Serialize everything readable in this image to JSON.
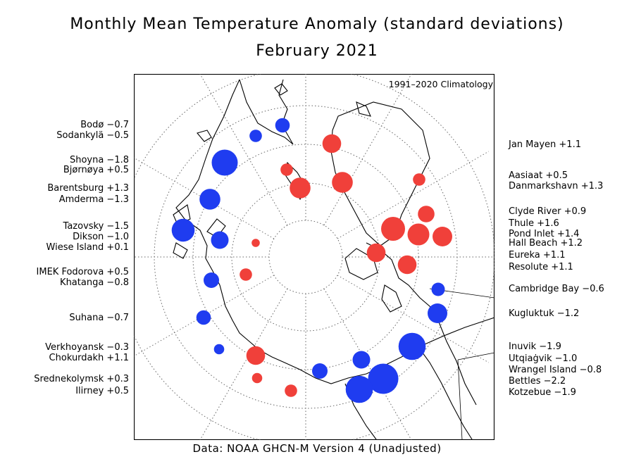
{
  "title": "Monthly Mean Temperature Anomaly (standard deviations)",
  "subtitle": "February 2021",
  "climatology": "1991–2020 Climatology",
  "footer": "Data: NOAA GHCN-M Version 4 (Unadjusted)",
  "colors": {
    "positive": "#f0403a",
    "negative": "#1f3cf0",
    "frame": "#000000"
  },
  "stations_left": [
    {
      "name": "Bodø",
      "value": "−0.7"
    },
    {
      "name": "Sodankylä",
      "value": "−0.5"
    },
    {
      "name": "Shoyna",
      "value": "−1.8"
    },
    {
      "name": "Bjørnøya",
      "value": "+0.5"
    },
    {
      "name": "Barentsburg",
      "value": "+1.3"
    },
    {
      "name": "Amderma",
      "value": "−1.3"
    },
    {
      "name": "Tazovsky",
      "value": "−1.5"
    },
    {
      "name": "Dikson",
      "value": "−1.0"
    },
    {
      "name": "Wiese Island",
      "value": "+0.1"
    },
    {
      "name": "IMEK Fodorova",
      "value": "+0.5"
    },
    {
      "name": "Khatanga",
      "value": "−0.8"
    },
    {
      "name": "Suhana",
      "value": "−0.7"
    },
    {
      "name": "Verkhoyansk",
      "value": "−0.3"
    },
    {
      "name": "Chokurdakh",
      "value": "+1.1"
    },
    {
      "name": "Srednekolymsk",
      "value": "+0.3"
    },
    {
      "name": "Ilirney",
      "value": "+0.5"
    }
  ],
  "stations_right": [
    {
      "name": "Jan Mayen",
      "value": "+1.1"
    },
    {
      "name": "Aasiaat",
      "value": "+0.5"
    },
    {
      "name": "Danmarkshavn",
      "value": "+1.3"
    },
    {
      "name": "Clyde River",
      "value": "+0.9"
    },
    {
      "name": "Thule",
      "value": "+1.6"
    },
    {
      "name": "Pond Inlet",
      "value": "+1.4"
    },
    {
      "name": "Hall Beach",
      "value": "+1.2"
    },
    {
      "name": "Eureka",
      "value": "+1.1"
    },
    {
      "name": "Resolute",
      "value": "+1.1"
    },
    {
      "name": "Cambridge Bay",
      "value": "−0.6"
    },
    {
      "name": "Kugluktuk",
      "value": "−1.2"
    },
    {
      "name": "Inuvik",
      "value": "−1.9"
    },
    {
      "name": "Utqiaġvik",
      "value": "−1.0"
    },
    {
      "name": "Wrangel Island",
      "value": "−0.8"
    },
    {
      "name": "Bettles",
      "value": "−2.2"
    },
    {
      "name": "Kotzebue",
      "value": "−1.9"
    }
  ],
  "markers": [
    {
      "station": "Bodø",
      "anomaly": -0.7
    },
    {
      "station": "Sodankylä",
      "anomaly": -0.5
    },
    {
      "station": "Shoyna",
      "anomaly": -1.8
    },
    {
      "station": "Bjørnøya",
      "anomaly": 0.5
    },
    {
      "station": "Barentsburg",
      "anomaly": 1.3
    },
    {
      "station": "Amderma",
      "anomaly": -1.3
    },
    {
      "station": "Tazovsky",
      "anomaly": -1.5
    },
    {
      "station": "Dikson",
      "anomaly": -1.0
    },
    {
      "station": "Wiese Island",
      "anomaly": 0.1
    },
    {
      "station": "IMEK Fodorova",
      "anomaly": 0.5
    },
    {
      "station": "Khatanga",
      "anomaly": -0.8
    },
    {
      "station": "Suhana",
      "anomaly": -0.7
    },
    {
      "station": "Verkhoyansk",
      "anomaly": -0.3
    },
    {
      "station": "Chokurdakh",
      "anomaly": 1.1
    },
    {
      "station": "Srednekolymsk",
      "anomaly": 0.3
    },
    {
      "station": "Ilirney",
      "anomaly": 0.5
    },
    {
      "station": "Jan Mayen",
      "anomaly": 1.1
    },
    {
      "station": "Aasiaat",
      "anomaly": 0.5
    },
    {
      "station": "Danmarkshavn",
      "anomaly": 1.3
    },
    {
      "station": "Clyde River",
      "anomaly": 0.9
    },
    {
      "station": "Thule",
      "anomaly": 1.6
    },
    {
      "station": "Pond Inlet",
      "anomaly": 1.4
    },
    {
      "station": "Hall Beach",
      "anomaly": 1.2
    },
    {
      "station": "Eureka",
      "anomaly": 1.1
    },
    {
      "station": "Resolute",
      "anomaly": 1.1
    },
    {
      "station": "Cambridge Bay",
      "anomaly": -0.6
    },
    {
      "station": "Kugluktuk",
      "anomaly": -1.2
    },
    {
      "station": "Inuvik",
      "anomaly": -1.9
    },
    {
      "station": "Utqiaġvik",
      "anomaly": -1.0
    },
    {
      "station": "Wrangel Island",
      "anomaly": -0.8
    },
    {
      "station": "Bettles",
      "anomaly": -2.2
    },
    {
      "station": "Kotzebue",
      "anomaly": -1.9
    }
  ]
}
